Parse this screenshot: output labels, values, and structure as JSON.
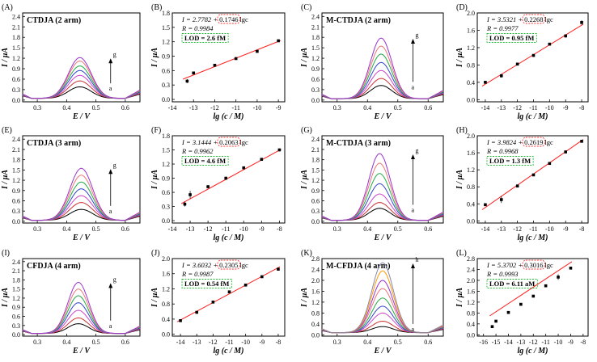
{
  "figure": {
    "rows": [
      {
        "xlabel_volt": "E / V",
        "xlabel_lg": "lg (c / M)",
        "ylabel": "I / µA"
      },
      {
        "xlabel_volt": "E / V",
        "xlabel_lg": "lg (c / M)",
        "ylabel": "I / µA"
      },
      {
        "xlabel_volt": "E / V",
        "xlabel_lg": "lg (c / M)",
        "ylabel": "I / µA"
      }
    ]
  },
  "colors": {
    "curves": [
      "#000000",
      "#cc3333",
      "#cc44cc",
      "#3344cc",
      "#22aa44",
      "#ee7777",
      "#9933cc",
      "#ff9900",
      "#8888aa"
    ],
    "fit": "#ff2020",
    "eq_box": "#ff3333",
    "lod_box": "#22bb33"
  },
  "chart_data": [
    {
      "panel": "(A)",
      "type": "line",
      "title": "CTDJA (2 arm)",
      "xlabel": "E / V",
      "ylabel": "I / µA",
      "xlim": [
        0.25,
        0.65
      ],
      "ylim": [
        -0.05,
        2.5
      ],
      "xticks": [
        0.3,
        0.4,
        0.5,
        0.6
      ],
      "yticks": [
        0.0,
        0.3,
        0.6,
        0.9,
        1.2,
        1.5,
        1.8,
        2.1,
        2.4
      ],
      "xticklabels": [
        "0.3",
        "0.4",
        "0.5",
        "0.6"
      ],
      "yticklabels": [
        "0.0",
        "0.3",
        "0.6",
        "0.9",
        "1.2",
        "1.5",
        "1.8",
        "2.1",
        "2.4"
      ],
      "peak_x": 0.445,
      "peak_width": 0.055,
      "baseline": 0.05,
      "peaks": [
        0.38,
        0.55,
        0.71,
        0.85,
        0.98,
        1.12,
        1.22
      ],
      "arrow": {
        "from": "a",
        "to": "g"
      }
    },
    {
      "panel": "(B)",
      "type": "scatter",
      "xlabel": "lg (c / M)",
      "ylabel": "I / µA",
      "xlim": [
        -14,
        -8.7
      ],
      "ylim": [
        -0.05,
        1.8
      ],
      "xticks": [
        -14,
        -13,
        -12,
        -11,
        -10,
        -9
      ],
      "yticks": [
        0.0,
        0.3,
        0.6,
        0.9,
        1.2,
        1.5,
        1.8
      ],
      "xticklabels": [
        "-14",
        "-13",
        "-12",
        "-11",
        "-10",
        "-9"
      ],
      "yticklabels": [
        "0.0",
        "0.3",
        "0.6",
        "0.9",
        "1.2",
        "1.5",
        "1.8"
      ],
      "x": [
        -13.3,
        -13,
        -12,
        -11,
        -10,
        -9
      ],
      "y": [
        0.38,
        0.55,
        0.71,
        0.85,
        1.0,
        1.22
      ],
      "err": [
        0.04,
        0.03,
        0.02,
        0.02,
        0.02,
        0.02
      ],
      "fit": {
        "intercept": 2.7782,
        "slope": 0.1746
      },
      "eq_left": "I = 2.7782 +",
      "eq_right": "0.1746",
      "eq_suffix": "lgc",
      "r_text": "R = 0.9984",
      "lod": "LOD = 2.6 fM"
    },
    {
      "panel": "(C)",
      "type": "line",
      "title": "M-CTDJA (2 arm)",
      "xlabel": "E / V",
      "ylabel": "I / µA",
      "xlim": [
        0.25,
        0.65
      ],
      "ylim": [
        -0.05,
        2.5
      ],
      "xticks": [
        0.3,
        0.4,
        0.5,
        0.6
      ],
      "yticks": [
        0.0,
        0.3,
        0.6,
        0.9,
        1.2,
        1.5,
        1.8,
        2.1,
        2.4
      ],
      "xticklabels": [
        "0.3",
        "0.4",
        "0.5",
        "0.6"
      ],
      "yticklabels": [
        "0.0",
        "0.3",
        "0.6",
        "0.9",
        "1.2",
        "1.5",
        "1.8",
        "2.1",
        "2.4"
      ],
      "peak_x": 0.445,
      "peak_width": 0.05,
      "baseline": 0.04,
      "peaks": [
        0.42,
        0.62,
        0.85,
        1.08,
        1.32,
        1.55,
        1.78
      ],
      "arrow": {
        "from": "a",
        "to": "g"
      }
    },
    {
      "panel": "(D)",
      "type": "scatter",
      "xlabel": "lg (c / M)",
      "ylabel": "I / µA",
      "xlim": [
        -14.5,
        -7.6
      ],
      "ylim": [
        -0.05,
        2.0
      ],
      "xticks": [
        -14,
        -13,
        -12,
        -11,
        -10,
        -9,
        -8
      ],
      "yticks": [
        0.0,
        0.4,
        0.8,
        1.2,
        1.6,
        2.0
      ],
      "xticklabels": [
        "-14",
        "-13",
        "-12",
        "-11",
        "-10",
        "-9",
        "-8"
      ],
      "yticklabels": [
        "0.0",
        "0.4",
        "0.8",
        "1.2",
        "1.6",
        "2.0"
      ],
      "x": [
        -14,
        -13,
        -12,
        -11,
        -10,
        -9,
        -8
      ],
      "y": [
        0.4,
        0.55,
        0.82,
        1.02,
        1.28,
        1.47,
        1.78
      ],
      "err": [
        0.03,
        0.04,
        0.03,
        0.03,
        0.03,
        0.04,
        0.05
      ],
      "fit": {
        "intercept": 3.5321,
        "slope": 0.2268
      },
      "eq_left": "I = 3.5321 +",
      "eq_right": "0.2268",
      "eq_suffix": "lgc",
      "r_text": "R = 0.9977",
      "lod": "LOD = 0.95 fM"
    },
    {
      "panel": "(E)",
      "type": "line",
      "title": "CTDJA (3 arm)",
      "xlabel": "E / V",
      "ylabel": "I / µA",
      "xlim": [
        0.25,
        0.65
      ],
      "ylim": [
        -0.05,
        2.5
      ],
      "xticks": [
        0.3,
        0.4,
        0.5,
        0.6
      ],
      "yticks": [
        0.0,
        0.3,
        0.6,
        0.9,
        1.2,
        1.5,
        1.8,
        2.1,
        2.4
      ],
      "xticklabels": [
        "0.3",
        "0.4",
        "0.5",
        "0.6"
      ],
      "yticklabels": [
        "0.0",
        "0.3",
        "0.6",
        "0.9",
        "1.2",
        "1.5",
        "1.8",
        "2.1",
        "2.4"
      ],
      "peak_x": 0.45,
      "peak_width": 0.055,
      "baseline": 0.03,
      "peaks": [
        0.35,
        0.55,
        0.75,
        0.95,
        1.15,
        1.35,
        1.55
      ],
      "arrow": {
        "from": "a",
        "to": "g"
      }
    },
    {
      "panel": "(F)",
      "type": "scatter",
      "xlabel": "lg (c / M)",
      "ylabel": "I / µA",
      "xlim": [
        -14,
        -7.7
      ],
      "ylim": [
        -0.05,
        1.8
      ],
      "xticks": [
        -14,
        -13,
        -12,
        -11,
        -10,
        -9,
        -8
      ],
      "yticks": [
        0.0,
        0.3,
        0.6,
        0.9,
        1.2,
        1.5,
        1.8
      ],
      "xticklabels": [
        "-14",
        "-13",
        "-12",
        "-11",
        "-10",
        "-9",
        "-8"
      ],
      "yticklabels": [
        "0.0",
        "0.3",
        "0.6",
        "0.9",
        "1.2",
        "1.5",
        "1.8"
      ],
      "x": [
        -13.3,
        -13,
        -12,
        -11,
        -10,
        -9,
        -8
      ],
      "y": [
        0.35,
        0.55,
        0.72,
        0.9,
        1.12,
        1.3,
        1.5
      ],
      "err": [
        0.05,
        0.08,
        0.03,
        0.03,
        0.03,
        0.03,
        0.03
      ],
      "fit": {
        "intercept": 3.1444,
        "slope": 0.2063
      },
      "eq_left": "I = 3.1444 +",
      "eq_right": "0.2063",
      "eq_suffix": "lgc",
      "r_text": "R = 0.9962",
      "lod": "LOD = 4.6 fM"
    },
    {
      "panel": "(G)",
      "type": "line",
      "title": "M-CTDJA (3 arm)",
      "xlabel": "E / V",
      "ylabel": "I / µA",
      "xlim": [
        0.25,
        0.65
      ],
      "ylim": [
        -0.05,
        2.5
      ],
      "xticks": [
        0.3,
        0.4,
        0.5,
        0.6
      ],
      "yticks": [
        0.0,
        0.3,
        0.6,
        0.9,
        1.2,
        1.5,
        1.8,
        2.1,
        2.4
      ],
      "xticklabels": [
        "0.3",
        "0.4",
        "0.5",
        "0.6"
      ],
      "yticklabels": [
        "0.0",
        "0.3",
        "0.6",
        "0.9",
        "1.2",
        "1.5",
        "1.8",
        "2.1",
        "2.4"
      ],
      "peak_x": 0.44,
      "peak_width": 0.05,
      "baseline": 0.03,
      "peaks": [
        0.38,
        0.55,
        0.8,
        1.1,
        1.4,
        1.7,
        1.98
      ],
      "arrow": {
        "from": "a",
        "to": "g"
      }
    },
    {
      "panel": "(H)",
      "type": "scatter",
      "xlabel": "lg (c / M)",
      "ylabel": "I / µA",
      "xlim": [
        -14.5,
        -7.6
      ],
      "ylim": [
        -0.05,
        2.0
      ],
      "xticks": [
        -14,
        -13,
        -12,
        -11,
        -10,
        -9,
        -8
      ],
      "yticks": [
        0.0,
        0.4,
        0.8,
        1.2,
        1.6,
        2.0
      ],
      "xticklabels": [
        "-14",
        "-13",
        "-12",
        "-11",
        "-10",
        "-9",
        "-8"
      ],
      "yticklabels": [
        "0.0",
        "0.4",
        "0.8",
        "1.2",
        "1.6",
        "2.0"
      ],
      "x": [
        -14,
        -13,
        -12,
        -11,
        -10,
        -9,
        -8
      ],
      "y": [
        0.38,
        0.5,
        0.82,
        1.08,
        1.35,
        1.62,
        1.87
      ],
      "err": [
        0.03,
        0.08,
        0.03,
        0.03,
        0.03,
        0.03,
        0.03
      ],
      "fit": {
        "intercept": 3.9824,
        "slope": 0.2619
      },
      "eq_left": "I = 3.9824 +",
      "eq_right": "0.2619",
      "eq_suffix": "lgc",
      "r_text": "R = 0.9968",
      "lod": "LOD = 1.3 fM"
    },
    {
      "panel": "(I)",
      "type": "line",
      "title": "CFDJA (4 arm)",
      "xlabel": "E / V",
      "ylabel": "I / µA",
      "xlim": [
        0.25,
        0.65
      ],
      "ylim": [
        -0.05,
        2.5
      ],
      "xticks": [
        0.3,
        0.4,
        0.5,
        0.6
      ],
      "yticks": [
        0.0,
        0.3,
        0.6,
        0.9,
        1.2,
        1.5,
        1.8,
        2.1,
        2.4
      ],
      "xticklabels": [
        "0.3",
        "0.4",
        "0.5",
        "0.6"
      ],
      "yticklabels": [
        "0.0",
        "0.3",
        "0.6",
        "0.9",
        "1.2",
        "1.5",
        "1.8",
        "2.1",
        "2.4"
      ],
      "peak_x": 0.44,
      "peak_width": 0.05,
      "baseline": 0.04,
      "peaks": [
        0.36,
        0.55,
        0.8,
        1.05,
        1.28,
        1.5,
        1.72
      ],
      "arrow": {
        "from": "a",
        "to": "g"
      }
    },
    {
      "panel": "(J)",
      "type": "scatter",
      "xlabel": "lg (c / M)",
      "ylabel": "I / µA",
      "xlim": [
        -14.5,
        -7.6
      ],
      "ylim": [
        -0.05,
        2.0
      ],
      "xticks": [
        -14,
        -13,
        -12,
        -11,
        -10,
        -9,
        -8
      ],
      "yticks": [
        0.0,
        0.4,
        0.8,
        1.2,
        1.6,
        2.0
      ],
      "xticklabels": [
        "-14",
        "-13",
        "-12",
        "-11",
        "-10",
        "-9",
        "-8"
      ],
      "yticklabels": [
        "0.0",
        "0.4",
        "0.8",
        "1.2",
        "1.6",
        "2.0"
      ],
      "x": [
        -14,
        -13,
        -12,
        -11,
        -10,
        -9,
        -8
      ],
      "y": [
        0.36,
        0.58,
        0.85,
        1.12,
        1.3,
        1.52,
        1.72
      ],
      "err": [
        0.03,
        0.03,
        0.03,
        0.03,
        0.03,
        0.03,
        0.04
      ],
      "fit": {
        "intercept": 3.6032,
        "slope": 0.2305
      },
      "eq_left": "I = 3.6032 +",
      "eq_right": "0.2305",
      "eq_suffix": "lgc",
      "r_text": "R = 0.9987",
      "lod": "LOD = 0.54 fM"
    },
    {
      "panel": "(K)",
      "type": "line",
      "title": "M-CFDJA (4 arm)",
      "xlabel": "E / V",
      "ylabel": "I / µA",
      "xlim": [
        0.25,
        0.65
      ],
      "ylim": [
        -0.05,
        2.8
      ],
      "xticks": [
        0.3,
        0.4,
        0.5,
        0.6
      ],
      "yticks": [
        0.0,
        0.4,
        0.8,
        1.2,
        1.6,
        2.0,
        2.4,
        2.8
      ],
      "xticklabels": [
        "0.3",
        "0.4",
        "0.5",
        "0.6"
      ],
      "yticklabels": [
        "0.0",
        "0.4",
        "0.8",
        "1.2",
        "1.6",
        "2.0",
        "2.4",
        "2.8"
      ],
      "peak_x": 0.45,
      "peak_width": 0.05,
      "baseline": 0.08,
      "peaks": [
        0.3,
        0.5,
        0.8,
        1.05,
        1.35,
        1.7,
        2.0,
        2.35,
        2.65
      ],
      "arrow": {
        "from": "a",
        "to": "h"
      }
    },
    {
      "panel": "(L)",
      "type": "scatter",
      "xlabel": "lg (c / M)",
      "ylabel": "I / µA",
      "xlim": [
        -16.5,
        -7.6
      ],
      "ylim": [
        -0.05,
        2.8
      ],
      "xticks": [
        -16,
        -15,
        -14,
        -13,
        -12,
        -11,
        -10,
        -9,
        -8
      ],
      "yticks": [
        0.0,
        0.4,
        0.8,
        1.2,
        1.6,
        2.0,
        2.4,
        2.8
      ],
      "xticklabels": [
        "-16",
        "-15",
        "-14",
        "-13",
        "-12",
        "-11",
        "-10",
        "-9",
        "-8"
      ],
      "yticklabels": [
        "0.0",
        "0.4",
        "0.8",
        "1.2",
        "1.6",
        "2.0",
        "2.4",
        "2.8"
      ],
      "x": [
        -15.3,
        -15,
        -14,
        -13,
        -12,
        -11,
        -10,
        -9
      ],
      "y": [
        0.3,
        0.5,
        0.82,
        1.12,
        1.42,
        1.8,
        2.12,
        2.45
      ],
      "err": [
        0.03,
        0.03,
        0.03,
        0.03,
        0.03,
        0.05,
        0.1,
        0.03
      ],
      "fit": {
        "intercept": 5.3702,
        "slope": 0.3016
      },
      "eq_left": "I = 5.3702 +",
      "eq_right": "0.3016",
      "eq_suffix": "lgc",
      "r_text": "R = 0.9993",
      "lod": "LOD = 6.11 aM"
    }
  ]
}
